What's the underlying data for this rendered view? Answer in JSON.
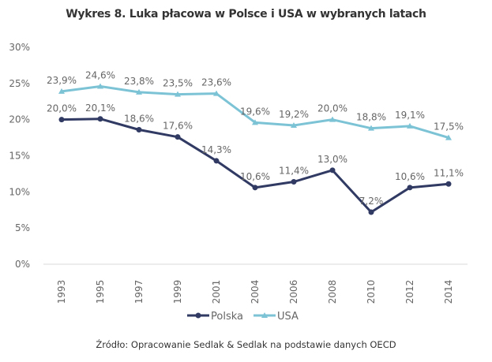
{
  "chart_data": {
    "type": "line",
    "title": "Wykres 8. Luka płacowa w Polsce i USA w wybranych latach",
    "categories": [
      "1993",
      "1995",
      "1997",
      "1999",
      "2001",
      "2004",
      "2006",
      "2008",
      "2010",
      "2012",
      "2014"
    ],
    "series": [
      {
        "name": "Polska",
        "color": "#303a63",
        "marker": "circle",
        "values": [
          20.0,
          20.1,
          18.6,
          17.6,
          14.3,
          10.6,
          11.4,
          13.0,
          7.2,
          10.6,
          11.1
        ],
        "labels": [
          "20,0%",
          "20,1%",
          "18,6%",
          "17,6%",
          "14,3%",
          "10,6%",
          "11,4%",
          "13,0%",
          "7,2%",
          "10,6%",
          "11,1%"
        ]
      },
      {
        "name": "USA",
        "color": "#7cc3d6",
        "marker": "triangle",
        "values": [
          23.9,
          24.6,
          23.8,
          23.5,
          23.6,
          19.6,
          19.2,
          20.0,
          18.8,
          19.1,
          17.5
        ],
        "labels": [
          "23,9%",
          "24,6%",
          "23,8%",
          "23,5%",
          "23,6%",
          "19,6%",
          "19,2%",
          "20,0%",
          "18,8%",
          "19,1%",
          "17,5%"
        ]
      }
    ],
    "ylim": [
      0,
      30
    ],
    "yticks": [
      "0%",
      "5%",
      "10%",
      "15%",
      "20%",
      "25%",
      "30%"
    ],
    "grid": false,
    "legend": "bottom"
  },
  "source": "Źródło: Opracowanie Sedlak & Sedlak na podstawie danych OECD"
}
